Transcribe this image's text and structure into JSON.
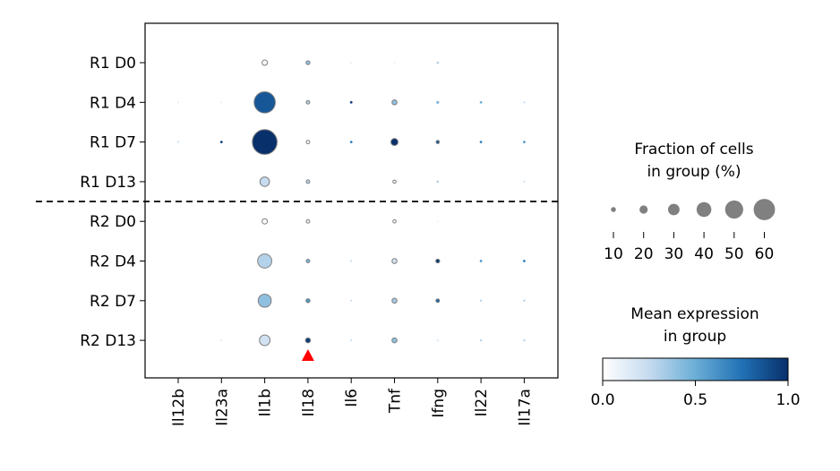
{
  "chart_data": {
    "type": "dotplot",
    "title": "",
    "xlabel": "",
    "ylabel": "",
    "genes": [
      "Il12b",
      "Il23a",
      "Il1b",
      "Il18",
      "Il6",
      "Tnf",
      "Ifng",
      "Il22",
      "Il17a"
    ],
    "groups": [
      "R1 D0",
      "R1 D4",
      "R1 D7",
      "R1 D13",
      "R2 D0",
      "R2 D4",
      "R2 D7",
      "R2 D13"
    ],
    "fraction_pct": [
      [
        1,
        1,
        10,
        6,
        1,
        3,
        2,
        1,
        1
      ],
      [
        1,
        1,
        55,
        5,
        2,
        9,
        3,
        2,
        1
      ],
      [
        1,
        2,
        65,
        5,
        2,
        15,
        4,
        2,
        2
      ],
      [
        1,
        1,
        22,
        5,
        1,
        4,
        2,
        1,
        1
      ],
      [
        1,
        1,
        10,
        5,
        1,
        4,
        2,
        1,
        1
      ],
      [
        1,
        2,
        35,
        5,
        1,
        9,
        6,
        2,
        2
      ],
      [
        1,
        1,
        32,
        6,
        1,
        9,
        5,
        1,
        1
      ],
      [
        1,
        2,
        25,
        9,
        1,
        9,
        3,
        1,
        1
      ]
    ],
    "mean_expr": [
      [
        0.0,
        0.0,
        0.02,
        0.4,
        0.1,
        0.05,
        0.3,
        0.0,
        0.0
      ],
      [
        0.1,
        0.1,
        0.85,
        0.3,
        0.95,
        0.4,
        0.45,
        0.5,
        0.2
      ],
      [
        0.2,
        0.95,
        1.0,
        0.05,
        0.7,
        1.0,
        0.85,
        0.7,
        0.6
      ],
      [
        0.0,
        0.0,
        0.25,
        0.3,
        0.0,
        0.1,
        0.3,
        0.0,
        0.2
      ],
      [
        0.0,
        0.0,
        0.02,
        0.1,
        0.0,
        0.05,
        0.05,
        0.0,
        0.0
      ],
      [
        0.0,
        0.0,
        0.3,
        0.45,
        0.2,
        0.2,
        0.95,
        0.6,
        0.7
      ],
      [
        0.0,
        0.0,
        0.4,
        0.6,
        0.2,
        0.35,
        0.8,
        0.3,
        0.3
      ],
      [
        0.0,
        0.1,
        0.2,
        0.95,
        0.2,
        0.4,
        0.1,
        0.3,
        0.3
      ]
    ],
    "divider_after_group": "R1 D13",
    "marker_gene": "Il18",
    "marker_color": "#ff0000",
    "size_legend": {
      "title_line1": "Fraction of cells",
      "title_line2": "in group (%)",
      "values": [
        10,
        20,
        30,
        40,
        50,
        60
      ],
      "dot_color": "#808080"
    },
    "color_legend": {
      "title_line1": "Mean expression",
      "title_line2": "in group",
      "range": [
        0.0,
        1.0
      ],
      "ticks": [
        "0.0",
        "0.5",
        "1.0"
      ],
      "colormap": [
        "#ffffff",
        "#c6dbef",
        "#6baed6",
        "#2171b5",
        "#08306b"
      ]
    }
  }
}
